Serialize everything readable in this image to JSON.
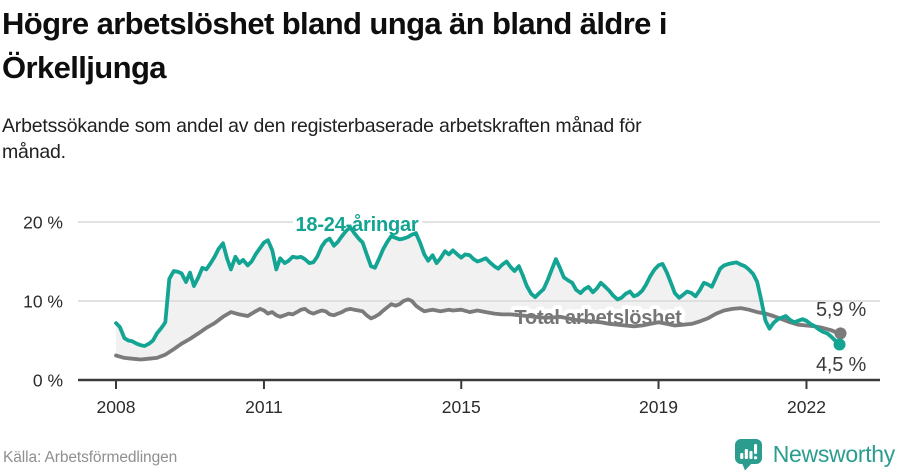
{
  "header": {
    "title_lines": [
      "Högre arbetslöshet bland unga än bland äldre i",
      "Örkelljunga"
    ],
    "subtitle_lines": [
      "Arbetssökande som andel av den registerbaserade arbetskraften månad för",
      "månad."
    ]
  },
  "chart_data": {
    "type": "line",
    "title": "Högre arbetslöshet bland unga än bland äldre i Örkelljunga",
    "xlabel": "",
    "ylabel": "",
    "xlim": [
      2008,
      2022.75
    ],
    "ylim": [
      0,
      21.5
    ],
    "grid": "horizontal",
    "legend_position": "inline-labels",
    "band_fill_between_series": "#f1f1f1",
    "colors": {
      "grid": "#d9d9d9",
      "axis": "#3a3a3a",
      "tick_text": "#2b2b2b",
      "end_label_text": "#3c3c3c"
    },
    "y_ticks": [
      {
        "label": "0 %",
        "value": 0
      },
      {
        "label": "10 %",
        "value": 10
      },
      {
        "label": "20 %",
        "value": 20
      }
    ],
    "x_ticks": [
      {
        "label": "2008",
        "value": 2008
      },
      {
        "label": "2011",
        "value": 2011
      },
      {
        "label": "2015",
        "value": 2015
      },
      {
        "label": "2019",
        "value": 2019
      },
      {
        "label": "2022",
        "value": 2022
      }
    ],
    "series": [
      {
        "name": "18-24-åringar",
        "color": "#13a493",
        "end_label": "4,5 %",
        "last_value": 4.5,
        "points": [
          [
            2008.0,
            7.2
          ],
          [
            2008.08,
            6.7
          ],
          [
            2008.17,
            5.3
          ],
          [
            2008.25,
            5.0
          ],
          [
            2008.33,
            4.9
          ],
          [
            2008.42,
            4.6
          ],
          [
            2008.5,
            4.4
          ],
          [
            2008.58,
            4.3
          ],
          [
            2008.67,
            4.6
          ],
          [
            2008.75,
            5.0
          ],
          [
            2008.83,
            5.9
          ],
          [
            2008.92,
            6.6
          ],
          [
            2009.0,
            7.3
          ],
          [
            2009.08,
            12.8
          ],
          [
            2009.17,
            13.8
          ],
          [
            2009.25,
            13.7
          ],
          [
            2009.33,
            13.5
          ],
          [
            2009.42,
            12.4
          ],
          [
            2009.5,
            13.6
          ],
          [
            2009.58,
            11.9
          ],
          [
            2009.67,
            13.0
          ],
          [
            2009.75,
            14.2
          ],
          [
            2009.83,
            14.0
          ],
          [
            2009.92,
            14.8
          ],
          [
            2010.0,
            15.6
          ],
          [
            2010.08,
            16.6
          ],
          [
            2010.17,
            17.3
          ],
          [
            2010.25,
            15.4
          ],
          [
            2010.33,
            14.0
          ],
          [
            2010.42,
            15.6
          ],
          [
            2010.5,
            14.8
          ],
          [
            2010.58,
            15.2
          ],
          [
            2010.67,
            14.5
          ],
          [
            2010.75,
            15.0
          ],
          [
            2010.83,
            15.9
          ],
          [
            2010.92,
            16.7
          ],
          [
            2011.0,
            17.4
          ],
          [
            2011.08,
            17.7
          ],
          [
            2011.17,
            16.4
          ],
          [
            2011.25,
            14.0
          ],
          [
            2011.33,
            15.4
          ],
          [
            2011.42,
            14.8
          ],
          [
            2011.5,
            15.1
          ],
          [
            2011.58,
            15.6
          ],
          [
            2011.67,
            15.5
          ],
          [
            2011.75,
            15.6
          ],
          [
            2011.83,
            15.3
          ],
          [
            2011.92,
            14.8
          ],
          [
            2012.0,
            14.9
          ],
          [
            2012.08,
            15.6
          ],
          [
            2012.17,
            16.9
          ],
          [
            2012.25,
            17.6
          ],
          [
            2012.33,
            17.9
          ],
          [
            2012.42,
            17.0
          ],
          [
            2012.5,
            17.5
          ],
          [
            2012.58,
            18.2
          ],
          [
            2012.67,
            18.9
          ],
          [
            2012.75,
            19.3
          ],
          [
            2012.83,
            18.6
          ],
          [
            2012.92,
            17.9
          ],
          [
            2013.0,
            17.4
          ],
          [
            2013.08,
            16.0
          ],
          [
            2013.17,
            14.4
          ],
          [
            2013.25,
            14.2
          ],
          [
            2013.33,
            15.3
          ],
          [
            2013.42,
            16.6
          ],
          [
            2013.5,
            17.5
          ],
          [
            2013.58,
            18.2
          ],
          [
            2013.67,
            18.0
          ],
          [
            2013.75,
            17.8
          ],
          [
            2013.83,
            17.9
          ],
          [
            2013.92,
            18.1
          ],
          [
            2014.0,
            18.4
          ],
          [
            2014.08,
            18.6
          ],
          [
            2014.17,
            17.3
          ],
          [
            2014.25,
            15.9
          ],
          [
            2014.33,
            15.1
          ],
          [
            2014.42,
            15.8
          ],
          [
            2014.5,
            14.8
          ],
          [
            2014.58,
            15.4
          ],
          [
            2014.67,
            16.3
          ],
          [
            2014.75,
            15.9
          ],
          [
            2014.83,
            16.4
          ],
          [
            2014.92,
            15.9
          ],
          [
            2015.0,
            15.5
          ],
          [
            2015.08,
            15.9
          ],
          [
            2015.17,
            15.8
          ],
          [
            2015.25,
            15.3
          ],
          [
            2015.33,
            15.0
          ],
          [
            2015.42,
            15.2
          ],
          [
            2015.5,
            15.4
          ],
          [
            2015.58,
            14.9
          ],
          [
            2015.67,
            14.4
          ],
          [
            2015.75,
            14.1
          ],
          [
            2015.83,
            14.6
          ],
          [
            2015.92,
            15.0
          ],
          [
            2016.0,
            14.3
          ],
          [
            2016.08,
            13.8
          ],
          [
            2016.17,
            14.4
          ],
          [
            2016.25,
            13.2
          ],
          [
            2016.33,
            11.9
          ],
          [
            2016.42,
            10.9
          ],
          [
            2016.5,
            10.5
          ],
          [
            2016.58,
            11.0
          ],
          [
            2016.67,
            11.5
          ],
          [
            2016.75,
            12.6
          ],
          [
            2016.83,
            13.9
          ],
          [
            2016.92,
            15.3
          ],
          [
            2017.0,
            14.2
          ],
          [
            2017.08,
            13.0
          ],
          [
            2017.17,
            12.6
          ],
          [
            2017.25,
            12.3
          ],
          [
            2017.33,
            11.4
          ],
          [
            2017.42,
            11.0
          ],
          [
            2017.5,
            11.5
          ],
          [
            2017.58,
            11.8
          ],
          [
            2017.67,
            11.1
          ],
          [
            2017.75,
            11.6
          ],
          [
            2017.83,
            12.3
          ],
          [
            2017.92,
            11.8
          ],
          [
            2018.0,
            11.3
          ],
          [
            2018.08,
            10.7
          ],
          [
            2018.17,
            10.2
          ],
          [
            2018.25,
            10.4
          ],
          [
            2018.33,
            10.9
          ],
          [
            2018.42,
            11.2
          ],
          [
            2018.5,
            10.6
          ],
          [
            2018.58,
            10.8
          ],
          [
            2018.67,
            11.3
          ],
          [
            2018.75,
            12.1
          ],
          [
            2018.83,
            13.1
          ],
          [
            2018.92,
            14.0
          ],
          [
            2019.0,
            14.5
          ],
          [
            2019.08,
            14.7
          ],
          [
            2019.17,
            13.6
          ],
          [
            2019.25,
            12.3
          ],
          [
            2019.33,
            11.0
          ],
          [
            2019.42,
            10.4
          ],
          [
            2019.5,
            10.8
          ],
          [
            2019.58,
            11.2
          ],
          [
            2019.67,
            11.0
          ],
          [
            2019.75,
            10.6
          ],
          [
            2019.83,
            11.3
          ],
          [
            2019.92,
            12.3
          ],
          [
            2020.0,
            12.1
          ],
          [
            2020.08,
            11.8
          ],
          [
            2020.17,
            13.0
          ],
          [
            2020.25,
            14.1
          ],
          [
            2020.33,
            14.5
          ],
          [
            2020.42,
            14.7
          ],
          [
            2020.5,
            14.8
          ],
          [
            2020.58,
            14.9
          ],
          [
            2020.67,
            14.6
          ],
          [
            2020.75,
            14.4
          ],
          [
            2020.83,
            14.0
          ],
          [
            2020.92,
            13.4
          ],
          [
            2021.0,
            12.4
          ],
          [
            2021.08,
            10.2
          ],
          [
            2021.17,
            7.5
          ],
          [
            2021.25,
            6.5
          ],
          [
            2021.33,
            7.2
          ],
          [
            2021.42,
            7.7
          ],
          [
            2021.5,
            7.9
          ],
          [
            2021.58,
            8.1
          ],
          [
            2021.67,
            7.6
          ],
          [
            2021.75,
            7.3
          ],
          [
            2021.83,
            7.5
          ],
          [
            2021.92,
            7.7
          ],
          [
            2022.0,
            7.5
          ],
          [
            2022.08,
            7.1
          ],
          [
            2022.17,
            6.8
          ],
          [
            2022.25,
            6.4
          ],
          [
            2022.33,
            6.1
          ],
          [
            2022.42,
            5.9
          ],
          [
            2022.5,
            5.5
          ],
          [
            2022.58,
            5.0
          ],
          [
            2022.67,
            4.5
          ]
        ]
      },
      {
        "name": "Total arbetslöshet",
        "color": "#7b7b7b",
        "end_label": "5,9 %",
        "last_value": 5.9,
        "points": [
          [
            2008.0,
            3.1
          ],
          [
            2008.17,
            2.8
          ],
          [
            2008.33,
            2.7
          ],
          [
            2008.5,
            2.6
          ],
          [
            2008.67,
            2.7
          ],
          [
            2008.83,
            2.8
          ],
          [
            2009.0,
            3.2
          ],
          [
            2009.17,
            3.9
          ],
          [
            2009.33,
            4.6
          ],
          [
            2009.5,
            5.2
          ],
          [
            2009.67,
            5.9
          ],
          [
            2009.83,
            6.6
          ],
          [
            2010.0,
            7.2
          ],
          [
            2010.17,
            8.0
          ],
          [
            2010.33,
            8.6
          ],
          [
            2010.5,
            8.3
          ],
          [
            2010.67,
            8.1
          ],
          [
            2010.83,
            8.7
          ],
          [
            2010.92,
            9.0
          ],
          [
            2011.0,
            8.8
          ],
          [
            2011.08,
            8.4
          ],
          [
            2011.17,
            8.6
          ],
          [
            2011.25,
            8.2
          ],
          [
            2011.33,
            8.0
          ],
          [
            2011.42,
            8.2
          ],
          [
            2011.5,
            8.4
          ],
          [
            2011.58,
            8.3
          ],
          [
            2011.67,
            8.6
          ],
          [
            2011.75,
            8.9
          ],
          [
            2011.83,
            9.0
          ],
          [
            2011.92,
            8.6
          ],
          [
            2012.0,
            8.4
          ],
          [
            2012.08,
            8.6
          ],
          [
            2012.17,
            8.8
          ],
          [
            2012.25,
            8.7
          ],
          [
            2012.33,
            8.3
          ],
          [
            2012.42,
            8.2
          ],
          [
            2012.5,
            8.4
          ],
          [
            2012.58,
            8.6
          ],
          [
            2012.67,
            8.9
          ],
          [
            2012.75,
            9.0
          ],
          [
            2012.83,
            8.9
          ],
          [
            2012.92,
            8.8
          ],
          [
            2013.0,
            8.7
          ],
          [
            2013.08,
            8.2
          ],
          [
            2013.17,
            7.8
          ],
          [
            2013.25,
            8.0
          ],
          [
            2013.33,
            8.3
          ],
          [
            2013.42,
            8.8
          ],
          [
            2013.5,
            9.2
          ],
          [
            2013.58,
            9.6
          ],
          [
            2013.67,
            9.4
          ],
          [
            2013.75,
            9.6
          ],
          [
            2013.83,
            10.0
          ],
          [
            2013.92,
            10.2
          ],
          [
            2014.0,
            10.0
          ],
          [
            2014.08,
            9.4
          ],
          [
            2014.17,
            9.0
          ],
          [
            2014.25,
            8.7
          ],
          [
            2014.33,
            8.8
          ],
          [
            2014.42,
            8.9
          ],
          [
            2014.5,
            8.8
          ],
          [
            2014.58,
            8.7
          ],
          [
            2014.67,
            8.8
          ],
          [
            2014.75,
            8.9
          ],
          [
            2014.83,
            8.8
          ],
          [
            2015.0,
            8.9
          ],
          [
            2015.17,
            8.6
          ],
          [
            2015.33,
            8.8
          ],
          [
            2015.5,
            8.6
          ],
          [
            2015.67,
            8.4
          ],
          [
            2015.83,
            8.3
          ],
          [
            2016.0,
            8.3
          ],
          [
            2016.17,
            8.2
          ],
          [
            2016.33,
            8.1
          ],
          [
            2016.5,
            8.0
          ],
          [
            2016.67,
            7.9
          ],
          [
            2016.83,
            7.9
          ],
          [
            2017.0,
            8.0
          ],
          [
            2017.17,
            7.8
          ],
          [
            2017.33,
            7.6
          ],
          [
            2017.5,
            7.5
          ],
          [
            2017.67,
            7.4
          ],
          [
            2017.83,
            7.3
          ],
          [
            2018.0,
            7.1
          ],
          [
            2018.17,
            7.0
          ],
          [
            2018.33,
            6.9
          ],
          [
            2018.5,
            6.8
          ],
          [
            2018.67,
            6.9
          ],
          [
            2018.83,
            7.1
          ],
          [
            2019.0,
            7.3
          ],
          [
            2019.17,
            7.1
          ],
          [
            2019.33,
            6.9
          ],
          [
            2019.5,
            7.0
          ],
          [
            2019.67,
            7.1
          ],
          [
            2019.83,
            7.4
          ],
          [
            2020.0,
            7.8
          ],
          [
            2020.17,
            8.4
          ],
          [
            2020.33,
            8.8
          ],
          [
            2020.5,
            9.0
          ],
          [
            2020.67,
            9.1
          ],
          [
            2020.83,
            8.9
          ],
          [
            2021.0,
            8.6
          ],
          [
            2021.17,
            8.4
          ],
          [
            2021.33,
            8.1
          ],
          [
            2021.5,
            7.7
          ],
          [
            2021.67,
            7.3
          ],
          [
            2021.83,
            7.0
          ],
          [
            2022.0,
            6.9
          ],
          [
            2022.17,
            6.8
          ],
          [
            2022.33,
            6.6
          ],
          [
            2022.5,
            6.3
          ],
          [
            2022.58,
            6.1
          ],
          [
            2022.67,
            5.9
          ]
        ]
      }
    ]
  },
  "footer": {
    "source": "Källa: Arbetsförmedlingen",
    "brand": "Newsworthy",
    "brand_color": "#2a9d8f"
  }
}
